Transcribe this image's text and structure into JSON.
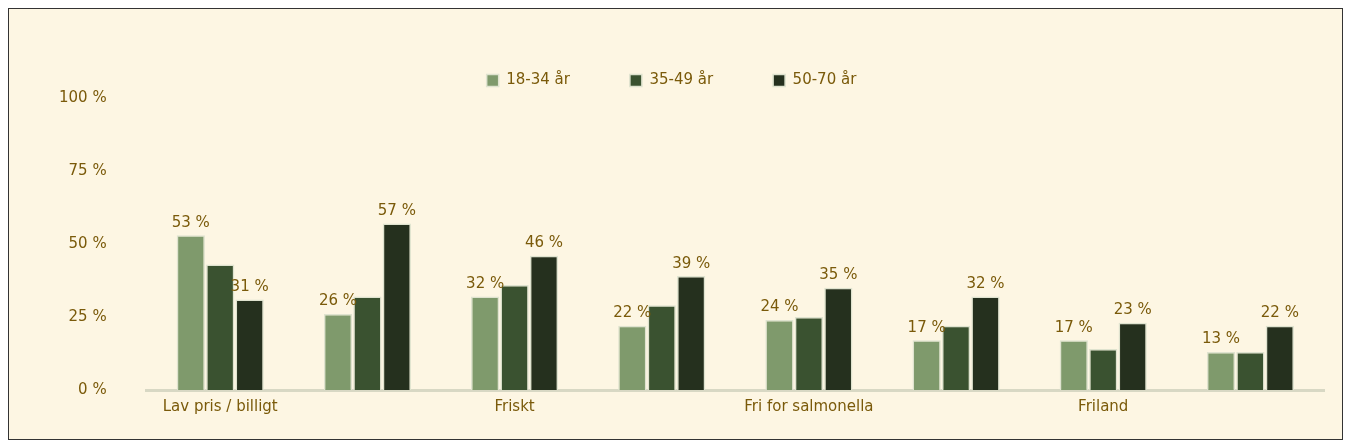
{
  "chart_data": {
    "type": "bar",
    "categories": [
      "Lav pris / billigt",
      null,
      "Friskt",
      null,
      "Fri for salmonella",
      null,
      "Friland",
      null
    ],
    "series": [
      {
        "name": "18-34 år",
        "color": "#7f9a6c",
        "values": [
          53,
          26,
          32,
          22,
          24,
          17,
          17,
          13
        ],
        "value_labels": [
          "53 %",
          "26 %",
          "32 %",
          "22 %",
          "24 %",
          "17 %",
          "17 %",
          "13 %"
        ]
      },
      {
        "name": "35-49 år",
        "color": "#3a5230",
        "values": [
          43,
          32,
          36,
          29,
          25,
          22,
          14,
          13
        ]
      },
      {
        "name": "50-70 år",
        "color": "#25301e",
        "values": [
          31,
          57,
          46,
          39,
          35,
          32,
          23,
          22
        ],
        "value_labels": [
          "31 %",
          "57 %",
          "46 %",
          "39 %",
          "35 %",
          "32 %",
          "23 %",
          "22 %"
        ]
      }
    ],
    "ylim": [
      0,
      100
    ],
    "yticks": [
      {
        "value": 0,
        "label": "0 %"
      },
      {
        "value": 25,
        "label": "25 %"
      },
      {
        "value": 50,
        "label": "50 %"
      },
      {
        "value": 75,
        "label": "75 %"
      },
      {
        "value": 100,
        "label": "100 %"
      }
    ],
    "grid": false,
    "legend": "top"
  }
}
